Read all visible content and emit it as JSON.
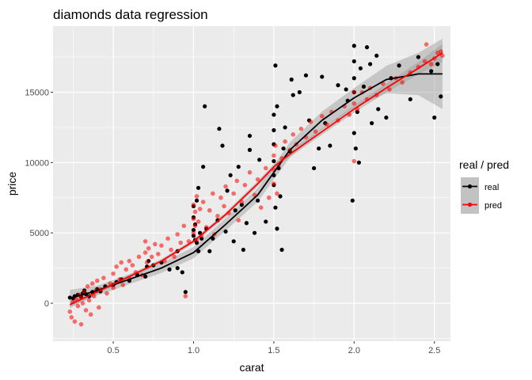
{
  "chart_data": {
    "type": "scatter",
    "title": "diamonds data regression",
    "xlabel": "carat",
    "ylabel": "price",
    "xlim": [
      0.125,
      2.6
    ],
    "ylim": [
      -2700,
      19700
    ],
    "x_ticks": [
      0.5,
      1.0,
      1.5,
      2.0,
      2.5
    ],
    "x_tick_labels": [
      "0.5",
      "1.0",
      "1.5",
      "2.0",
      "2.5"
    ],
    "y_ticks": [
      0,
      5000,
      10000,
      15000
    ],
    "y_tick_labels": [
      "0",
      "5000",
      "10000",
      "15000"
    ],
    "grid": true,
    "legend": {
      "title": "real / pred",
      "position": "right",
      "entries": [
        "real",
        "pred"
      ]
    },
    "series": [
      {
        "name": "real",
        "color": "#000000",
        "points": [
          [
            0.23,
            400
          ],
          [
            0.25,
            350
          ],
          [
            0.26,
            500
          ],
          [
            0.28,
            600
          ],
          [
            0.3,
            450
          ],
          [
            0.31,
            700
          ],
          [
            0.32,
            900
          ],
          [
            0.33,
            650
          ],
          [
            0.35,
            500
          ],
          [
            0.37,
            800
          ],
          [
            0.4,
            1000
          ],
          [
            0.42,
            850
          ],
          [
            0.45,
            1200
          ],
          [
            0.5,
            1300
          ],
          [
            0.52,
            1500
          ],
          [
            0.55,
            1700
          ],
          [
            0.6,
            1600
          ],
          [
            0.65,
            2000
          ],
          [
            0.7,
            1900
          ],
          [
            0.71,
            2600
          ],
          [
            0.72,
            3000
          ],
          [
            0.75,
            2700
          ],
          [
            0.8,
            2900
          ],
          [
            0.85,
            2400
          ],
          [
            0.9,
            2500
          ],
          [
            0.9,
            3700
          ],
          [
            0.93,
            2200
          ],
          [
            0.95,
            800
          ],
          [
            1.0,
            4800
          ],
          [
            1.0,
            5200
          ],
          [
            1.0,
            6100
          ],
          [
            1.0,
            6900
          ],
          [
            1.01,
            4500
          ],
          [
            1.01,
            5600
          ],
          [
            1.02,
            4300
          ],
          [
            1.02,
            7300
          ],
          [
            1.03,
            3700
          ],
          [
            1.03,
            8200
          ],
          [
            1.04,
            5000
          ],
          [
            1.05,
            4600
          ],
          [
            1.06,
            9700
          ],
          [
            1.07,
            14000
          ],
          [
            1.08,
            5300
          ],
          [
            1.1,
            3700
          ],
          [
            1.12,
            4600
          ],
          [
            1.15,
            5900
          ],
          [
            1.16,
            12400
          ],
          [
            1.18,
            11200
          ],
          [
            1.2,
            5100
          ],
          [
            1.21,
            8000
          ],
          [
            1.23,
            9100
          ],
          [
            1.25,
            4400
          ],
          [
            1.26,
            6600
          ],
          [
            1.28,
            9700
          ],
          [
            1.3,
            7000
          ],
          [
            1.31,
            3800
          ],
          [
            1.33,
            5700
          ],
          [
            1.35,
            10900
          ],
          [
            1.35,
            11900
          ],
          [
            1.38,
            5000
          ],
          [
            1.4,
            7300
          ],
          [
            1.41,
            10200
          ],
          [
            1.45,
            5800
          ],
          [
            1.5,
            8400
          ],
          [
            1.5,
            9100
          ],
          [
            1.5,
            10100
          ],
          [
            1.5,
            11300
          ],
          [
            1.5,
            12300
          ],
          [
            1.5,
            13400
          ],
          [
            1.51,
            6800
          ],
          [
            1.51,
            16900
          ],
          [
            1.52,
            5300
          ],
          [
            1.52,
            14000
          ],
          [
            1.53,
            9600
          ],
          [
            1.54,
            7600
          ],
          [
            1.55,
            3800
          ],
          [
            1.56,
            11000
          ],
          [
            1.57,
            12500
          ],
          [
            1.6,
            10800
          ],
          [
            1.61,
            15900
          ],
          [
            1.62,
            14800
          ],
          [
            1.66,
            15000
          ],
          [
            1.7,
            16200
          ],
          [
            1.72,
            13000
          ],
          [
            1.75,
            9600
          ],
          [
            1.78,
            11000
          ],
          [
            1.8,
            16100
          ],
          [
            1.82,
            12800
          ],
          [
            1.85,
            11200
          ],
          [
            1.9,
            15500
          ],
          [
            1.95,
            15200
          ],
          [
            1.96,
            14400
          ],
          [
            1.99,
            7300
          ],
          [
            2.0,
            18300
          ],
          [
            2.0,
            17200
          ],
          [
            2.0,
            16000
          ],
          [
            2.0,
            15000
          ],
          [
            2.0,
            12100
          ],
          [
            2.01,
            11000
          ],
          [
            2.02,
            13600
          ],
          [
            2.03,
            10000
          ],
          [
            2.04,
            16700
          ],
          [
            2.06,
            15400
          ],
          [
            2.08,
            18200
          ],
          [
            2.1,
            17000
          ],
          [
            2.11,
            12800
          ],
          [
            2.14,
            17600
          ],
          [
            2.15,
            13800
          ],
          [
            2.2,
            13200
          ],
          [
            2.23,
            16000
          ],
          [
            2.28,
            16900
          ],
          [
            2.35,
            14500
          ],
          [
            2.4,
            17500
          ],
          [
            2.48,
            16500
          ],
          [
            2.5,
            13200
          ],
          [
            2.52,
            17000
          ],
          [
            2.54,
            14700
          ]
        ]
      },
      {
        "name": "pred",
        "color": "#ff0000",
        "points": [
          [
            0.23,
            -600
          ],
          [
            0.24,
            -1000
          ],
          [
            0.25,
            100
          ],
          [
            0.26,
            -1300
          ],
          [
            0.27,
            300
          ],
          [
            0.28,
            -200
          ],
          [
            0.29,
            600
          ],
          [
            0.3,
            -1500
          ],
          [
            0.3,
            400
          ],
          [
            0.31,
            0
          ],
          [
            0.32,
            800
          ],
          [
            0.33,
            -500
          ],
          [
            0.34,
            1200
          ],
          [
            0.35,
            200
          ],
          [
            0.36,
            -800
          ],
          [
            0.37,
            1400
          ],
          [
            0.38,
            500
          ],
          [
            0.39,
            900
          ],
          [
            0.4,
            1600
          ],
          [
            0.41,
            -300
          ],
          [
            0.42,
            1000
          ],
          [
            0.44,
            1800
          ],
          [
            0.46,
            700
          ],
          [
            0.48,
            1400
          ],
          [
            0.5,
            2100
          ],
          [
            0.5,
            1100
          ],
          [
            0.52,
            2600
          ],
          [
            0.54,
            1700
          ],
          [
            0.55,
            2900
          ],
          [
            0.56,
            1300
          ],
          [
            0.58,
            2400
          ],
          [
            0.6,
            3000
          ],
          [
            0.6,
            1800
          ],
          [
            0.62,
            2700
          ],
          [
            0.64,
            2200
          ],
          [
            0.66,
            3300
          ],
          [
            0.68,
            2000
          ],
          [
            0.7,
            3600
          ],
          [
            0.7,
            4400
          ],
          [
            0.71,
            2900
          ],
          [
            0.72,
            3900
          ],
          [
            0.74,
            3300
          ],
          [
            0.76,
            4200
          ],
          [
            0.78,
            3500
          ],
          [
            0.8,
            4100
          ],
          [
            0.82,
            3000
          ],
          [
            0.84,
            4600
          ],
          [
            0.86,
            3800
          ],
          [
            0.88,
            3300
          ],
          [
            0.9,
            4900
          ],
          [
            0.92,
            4300
          ],
          [
            0.94,
            5500
          ],
          [
            0.95,
            500
          ],
          [
            0.97,
            4400
          ],
          [
            1.0,
            5000
          ],
          [
            1.0,
            6000
          ],
          [
            1.0,
            7000
          ],
          [
            1.01,
            5500
          ],
          [
            1.01,
            6500
          ],
          [
            1.02,
            4500
          ],
          [
            1.02,
            7600
          ],
          [
            1.03,
            5800
          ],
          [
            1.04,
            6700
          ],
          [
            1.05,
            4800
          ],
          [
            1.06,
            7200
          ],
          [
            1.08,
            5400
          ],
          [
            1.1,
            6600
          ],
          [
            1.12,
            7800
          ],
          [
            1.13,
            4900
          ],
          [
            1.15,
            6200
          ],
          [
            1.17,
            7500
          ],
          [
            1.19,
            6900
          ],
          [
            1.2,
            8300
          ],
          [
            1.22,
            6400
          ],
          [
            1.25,
            7800
          ],
          [
            1.27,
            8700
          ],
          [
            1.28,
            5900
          ],
          [
            1.3,
            7200
          ],
          [
            1.32,
            8400
          ],
          [
            1.35,
            9300
          ],
          [
            1.38,
            7700
          ],
          [
            1.4,
            8800
          ],
          [
            1.42,
            6800
          ],
          [
            1.45,
            9600
          ],
          [
            1.47,
            7500
          ],
          [
            1.5,
            8500
          ],
          [
            1.5,
            9500
          ],
          [
            1.5,
            10500
          ],
          [
            1.51,
            11200
          ],
          [
            1.52,
            7800
          ],
          [
            1.53,
            9800
          ],
          [
            1.55,
            10300
          ],
          [
            1.57,
            11500
          ],
          [
            1.6,
            10900
          ],
          [
            1.62,
            12000
          ],
          [
            1.64,
            11300
          ],
          [
            1.67,
            12400
          ],
          [
            1.7,
            11800
          ],
          [
            1.73,
            12900
          ],
          [
            1.76,
            12200
          ],
          [
            1.8,
            13300
          ],
          [
            1.83,
            12700
          ],
          [
            1.86,
            13600
          ],
          [
            1.9,
            13000
          ],
          [
            1.94,
            14000
          ],
          [
            1.97,
            13400
          ],
          [
            2.0,
            14200
          ],
          [
            2.0,
            15000
          ],
          [
            2.0,
            10100
          ],
          [
            2.02,
            13800
          ],
          [
            2.05,
            15000
          ],
          [
            2.08,
            14500
          ],
          [
            2.1,
            15300
          ],
          [
            2.14,
            14800
          ],
          [
            2.18,
            15600
          ],
          [
            2.22,
            15200
          ],
          [
            2.26,
            16000
          ],
          [
            2.3,
            15700
          ],
          [
            2.35,
            16400
          ],
          [
            2.4,
            16800
          ],
          [
            2.44,
            17200
          ],
          [
            2.48,
            17000
          ],
          [
            2.5,
            17400
          ],
          [
            2.52,
            17800
          ],
          [
            2.54,
            17900
          ],
          [
            2.55,
            17600
          ],
          [
            2.45,
            18400
          ]
        ]
      }
    ],
    "smooth": [
      {
        "name": "real",
        "color": "#000000",
        "points": [
          [
            0.23,
            350
          ],
          [
            0.4,
            900
          ],
          [
            0.6,
            1700
          ],
          [
            0.8,
            2500
          ],
          [
            1.0,
            3600
          ],
          [
            1.2,
            5600
          ],
          [
            1.4,
            7700
          ],
          [
            1.5,
            9300
          ],
          [
            1.6,
            10900
          ],
          [
            1.8,
            13000
          ],
          [
            2.0,
            14600
          ],
          [
            2.2,
            15900
          ],
          [
            2.4,
            16300
          ],
          [
            2.55,
            16300
          ]
        ],
        "band": [
          [
            0.23,
            600
          ],
          [
            0.4,
            350
          ],
          [
            0.8,
            350
          ],
          [
            1.0,
            400
          ],
          [
            1.5,
            500
          ],
          [
            2.0,
            700
          ],
          [
            2.3,
            1100
          ],
          [
            2.45,
            1700
          ],
          [
            2.55,
            2500
          ]
        ]
      },
      {
        "name": "pred",
        "color": "#ff0000",
        "points": [
          [
            0.23,
            -100
          ],
          [
            0.4,
            800
          ],
          [
            0.6,
            1900
          ],
          [
            0.8,
            3000
          ],
          [
            1.0,
            4400
          ],
          [
            1.2,
            6300
          ],
          [
            1.4,
            8500
          ],
          [
            1.5,
            9700
          ],
          [
            1.6,
            10600
          ],
          [
            1.8,
            12200
          ],
          [
            2.0,
            13800
          ],
          [
            2.2,
            15300
          ],
          [
            2.4,
            16700
          ],
          [
            2.55,
            17800
          ]
        ],
        "band": [
          [
            0.23,
            250
          ],
          [
            0.4,
            150
          ],
          [
            0.8,
            150
          ],
          [
            1.0,
            150
          ],
          [
            1.5,
            200
          ],
          [
            2.0,
            250
          ],
          [
            2.3,
            350
          ],
          [
            2.45,
            500
          ],
          [
            2.55,
            650
          ]
        ]
      }
    ]
  }
}
